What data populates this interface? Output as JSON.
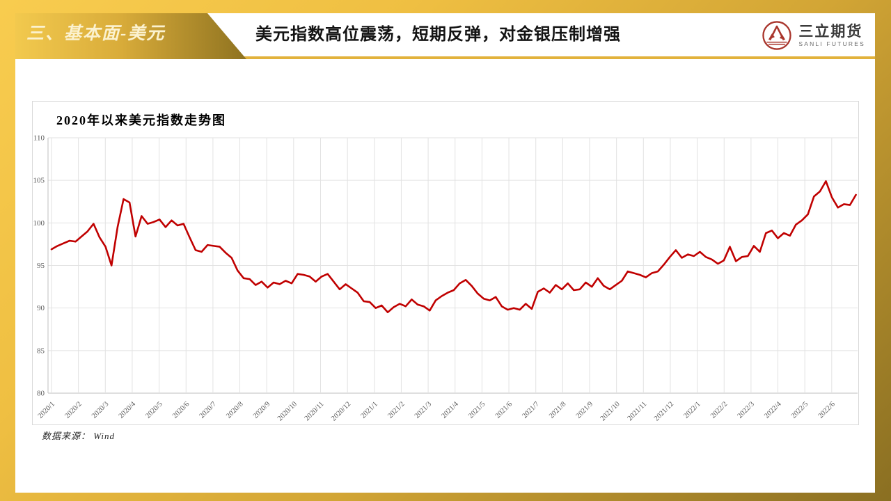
{
  "slide": {
    "section_label": "三、基本面-美元",
    "headline": "美元指数高位震荡，短期反弹，对金银压制增强",
    "logo": {
      "name": "三立期货",
      "subtitle": "SANLI FUTURES",
      "emblem_color": "#A9352C"
    },
    "source_note": "数据来源： Wind"
  },
  "colors": {
    "border_gold_light": "#F8CC4F",
    "border_gold_dark": "#8A6F22",
    "badge_text": "#FBF2D0",
    "underline_gold": "#E2B23C",
    "headline_text": "#141414"
  },
  "chart_data": {
    "type": "line",
    "title": "2020年以来美元指数走势图",
    "series_name": "美元指数",
    "xlabel": "",
    "ylabel": "",
    "ylim": [
      80,
      110
    ],
    "y_ticks": [
      80,
      85,
      90,
      95,
      100,
      105,
      110
    ],
    "x_tick_labels": [
      "2020/1",
      "2020/2",
      "2020/3",
      "2020/4",
      "2020/5",
      "2020/6",
      "2020/7",
      "2020/8",
      "2020/9",
      "2020/10",
      "2020/11",
      "2020/12",
      "2021/1",
      "2021/2",
      "2021/3",
      "2021/4",
      "2021/5",
      "2021/6",
      "2021/7",
      "2021/8",
      "2021/9",
      "2021/10",
      "2021/11",
      "2021/12",
      "2022/1",
      "2022/2",
      "2022/3",
      "2022/4",
      "2022/5",
      "2022/6"
    ],
    "x_months_span": 29.9,
    "grid": true,
    "legend": "none",
    "line_color": "#C00000",
    "grid_color": "#E2E2E2",
    "axis_color": "#BFBFBF",
    "tick_color": "#595959",
    "values": [
      96.9,
      97.3,
      97.6,
      97.9,
      97.8,
      98.4,
      99.0,
      99.9,
      98.3,
      97.2,
      95.0,
      99.5,
      102.8,
      102.4,
      98.4,
      100.8,
      99.9,
      100.1,
      100.4,
      99.5,
      100.3,
      99.7,
      99.9,
      98.3,
      96.8,
      96.6,
      97.4,
      97.3,
      97.2,
      96.5,
      95.9,
      94.4,
      93.5,
      93.4,
      92.7,
      93.1,
      92.4,
      93.0,
      92.8,
      93.2,
      92.9,
      94.0,
      93.9,
      93.7,
      93.1,
      93.7,
      94.0,
      93.1,
      92.2,
      92.8,
      92.3,
      91.8,
      90.8,
      90.7,
      90.0,
      90.3,
      89.5,
      90.1,
      90.5,
      90.2,
      91.0,
      90.4,
      90.2,
      89.7,
      90.9,
      91.4,
      91.8,
      92.1,
      92.9,
      93.3,
      92.6,
      91.7,
      91.1,
      90.9,
      91.3,
      90.2,
      89.8,
      90.0,
      89.8,
      90.5,
      89.9,
      91.9,
      92.3,
      91.8,
      92.7,
      92.2,
      92.9,
      92.1,
      92.2,
      93.0,
      92.5,
      93.5,
      92.6,
      92.2,
      92.7,
      93.2,
      94.3,
      94.1,
      93.9,
      93.6,
      94.1,
      94.3,
      95.1,
      96.0,
      96.8,
      95.9,
      96.3,
      96.1,
      96.6,
      96.0,
      95.7,
      95.2,
      95.6,
      97.2,
      95.5,
      96.0,
      96.1,
      97.3,
      96.6,
      98.8,
      99.1,
      98.2,
      98.8,
      98.5,
      99.8,
      100.3,
      101.0,
      103.1,
      103.7,
      104.9,
      103.0,
      101.8,
      102.2,
      102.1,
      103.3
    ]
  }
}
